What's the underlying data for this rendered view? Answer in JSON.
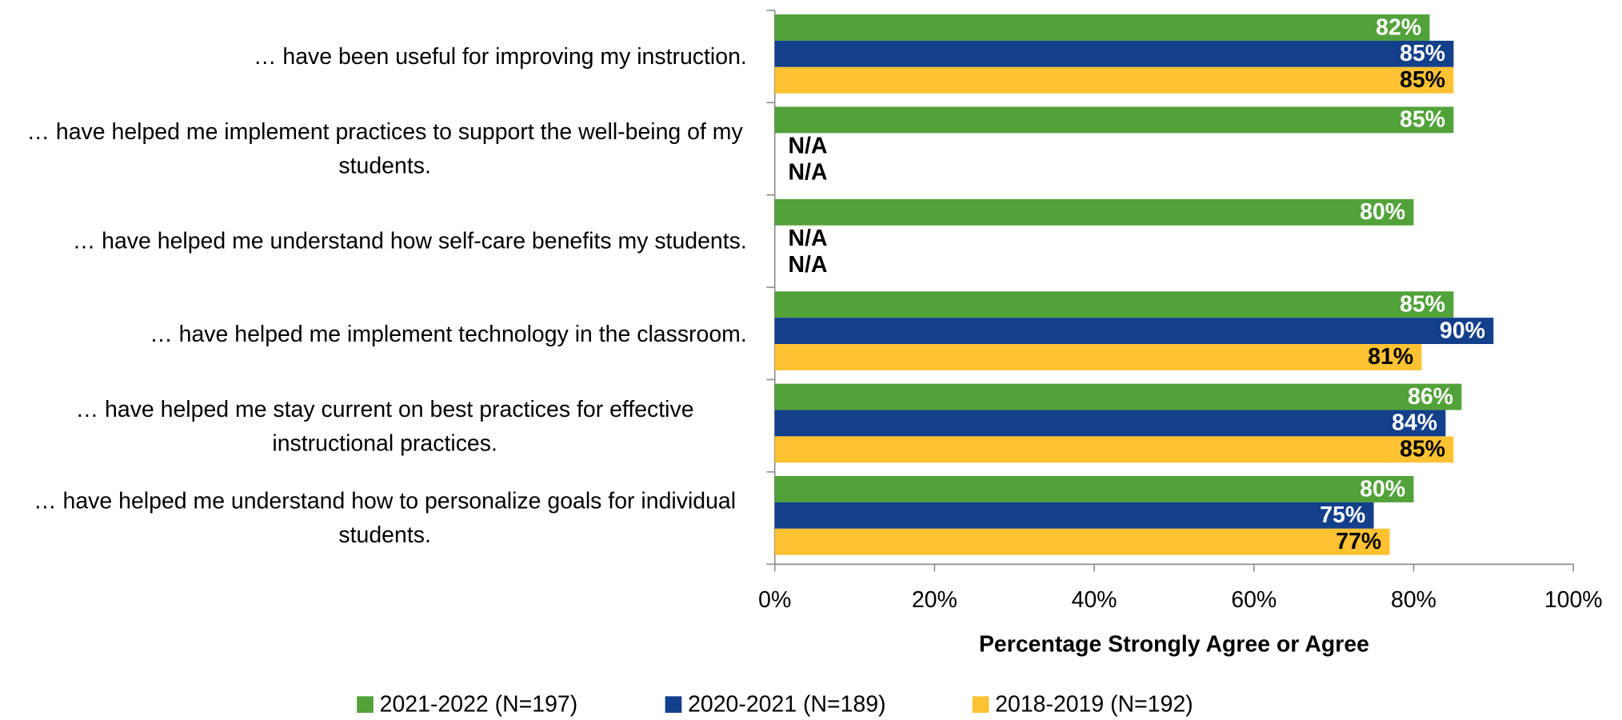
{
  "chart_data": {
    "type": "hbar",
    "categories": [
      "… have been useful for improving my instruction.",
      "… have helped me implement practices to support the well-being of my students.",
      "… have helped me understand how self-care benefits my students.",
      "… have helped me implement technology in the classroom.",
      "… have helped me stay current on best practices for effective instructional practices.",
      "… have helped me understand how to personalize goals for individual students."
    ],
    "series": [
      {
        "name": "2021-2022 (N=197)",
        "color": "#52a23a",
        "values": [
          82,
          85,
          80,
          85,
          86,
          80
        ],
        "value_labels": [
          "82%",
          "85%",
          "80%",
          "85%",
          "86%",
          "80%"
        ]
      },
      {
        "name": "2020-2021 (N=189)",
        "color": "#133f8b",
        "values": [
          85,
          null,
          null,
          90,
          84,
          75
        ],
        "value_labels": [
          "85%",
          "N/A",
          "N/A",
          "90%",
          "84%",
          "75%"
        ]
      },
      {
        "name": "2018-2019 (N=192)",
        "color": "#fec232",
        "values": [
          85,
          null,
          null,
          81,
          85,
          77
        ],
        "value_labels": [
          "85%",
          "N/A",
          "N/A",
          "81%",
          "85%",
          "77%"
        ]
      }
    ],
    "xlabel": "Percentage Strongly Agree or Agree",
    "xlim": [
      0,
      100
    ],
    "xticks": [
      {
        "value": 0,
        "label": "0%"
      },
      {
        "value": 20,
        "label": "20%"
      },
      {
        "value": 40,
        "label": "40%"
      },
      {
        "value": 60,
        "label": "60%"
      },
      {
        "value": 80,
        "label": "80%"
      },
      {
        "value": 100,
        "label": "100%"
      }
    ],
    "legend": "bottom"
  }
}
